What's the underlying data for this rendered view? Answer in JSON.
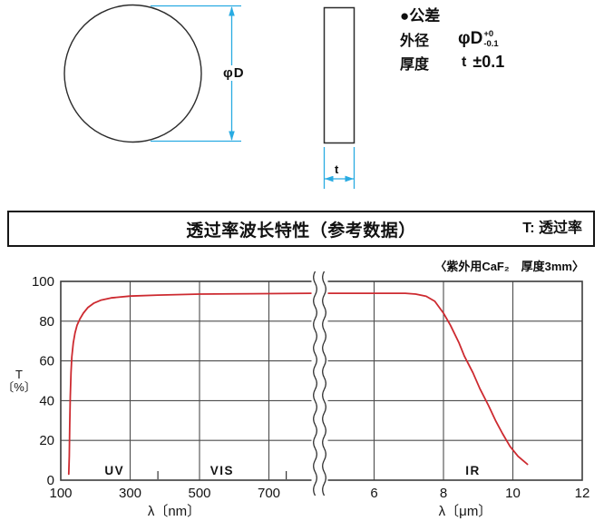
{
  "drawing": {
    "front_view": {
      "diameter_label": "φD"
    },
    "side_view": {
      "thickness_label": "t"
    },
    "tolerance": {
      "heading": "●公差",
      "rows": [
        {
          "name": "外径",
          "symbol": "φD",
          "sup": "+0",
          "sub": "-0.1"
        },
        {
          "name": "厚度",
          "symbol": "t",
          "value": "±0.1"
        }
      ]
    },
    "accent_color": "#29abe2",
    "line_color": "#2b2b2b"
  },
  "section_header": {
    "title": "透过率波长特性（参考数据）",
    "legend": "T: 透过率"
  },
  "chart_data": {
    "type": "line",
    "title": "透过率波长特性（参考数据）",
    "caption": "〈紫外用CaF₂　厚度3mm〉",
    "ylabel_lines": [
      "T",
      "〔%〕"
    ],
    "ylim": [
      0,
      100
    ],
    "y_ticks": [
      0,
      20,
      40,
      60,
      80,
      100
    ],
    "grid": true,
    "axis_break": true,
    "x_axis_left": {
      "label": "λ〔nm〕",
      "unit": "nm",
      "range": [
        100,
        827
      ],
      "ticks": [
        100,
        300,
        500,
        700
      ],
      "boundary_ticks": [
        380,
        750
      ]
    },
    "x_axis_right": {
      "label": "λ〔μm〕",
      "unit": "um",
      "range": [
        4.6,
        12
      ],
      "ticks": [
        6,
        8,
        10,
        12
      ]
    },
    "regions": [
      {
        "label": "UV",
        "unit": "nm",
        "at": 255
      },
      {
        "label": "VIS",
        "unit": "nm",
        "at": 565
      },
      {
        "label": "IR",
        "unit": "um",
        "at": 8.85
      }
    ],
    "series": [
      {
        "name": "紫外用CaF₂ 厚度3mm",
        "color": "#cd2a30",
        "points_nm": [
          [
            123,
            3
          ],
          [
            124.5,
            12
          ],
          [
            126,
            28
          ],
          [
            127.5,
            42
          ],
          [
            129.5,
            54
          ],
          [
            132,
            62
          ],
          [
            136,
            69
          ],
          [
            141,
            74
          ],
          [
            147,
            78
          ],
          [
            155,
            81
          ],
          [
            165,
            84
          ],
          [
            178,
            86.8
          ],
          [
            195,
            89
          ],
          [
            215,
            90.5
          ],
          [
            245,
            91.7
          ],
          [
            300,
            92.6
          ],
          [
            380,
            93.1
          ],
          [
            500,
            93.6
          ],
          [
            650,
            93.8
          ],
          [
            820,
            94
          ]
        ],
        "points_um": [
          [
            4.7,
            94
          ],
          [
            6,
            94
          ],
          [
            6.9,
            94
          ],
          [
            7.2,
            93.6
          ],
          [
            7.5,
            92.5
          ],
          [
            7.75,
            90
          ],
          [
            8.0,
            84
          ],
          [
            8.2,
            78
          ],
          [
            8.45,
            69
          ],
          [
            8.6,
            62.5
          ],
          [
            8.85,
            54
          ],
          [
            9.05,
            46
          ],
          [
            9.3,
            37.5
          ],
          [
            9.5,
            30
          ],
          [
            9.7,
            23.5
          ],
          [
            9.92,
            17
          ],
          [
            10.15,
            12
          ],
          [
            10.42,
            8
          ]
        ]
      }
    ]
  }
}
